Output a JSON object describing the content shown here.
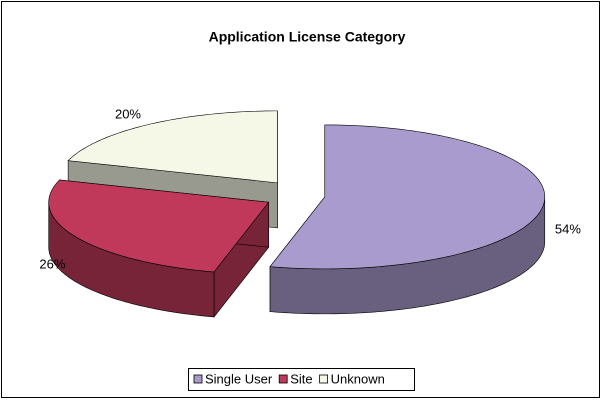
{
  "chart_data": {
    "type": "pie",
    "title": "Application License Category",
    "categories": [
      "Single User",
      "Site",
      "Unknown"
    ],
    "values": [
      54,
      26,
      20
    ],
    "value_labels": [
      "54%",
      "26%",
      "20%"
    ],
    "colors": [
      "#a99bcd",
      "#c0395a",
      "#f5f8e6"
    ],
    "legend": "bottom"
  }
}
